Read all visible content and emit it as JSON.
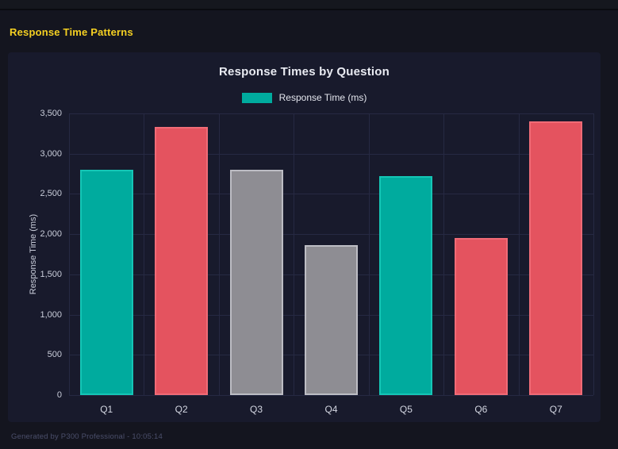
{
  "page": {
    "header_title": "Response Time Patterns",
    "footer_text": "Generated by P300 Professional - 10:05:14"
  },
  "colors": {
    "heading_accent": "#f5d022",
    "page_background": "#14151f",
    "panel_background": "#181a2c",
    "gridline": "#262943",
    "chart_title_text": "#e9ebf2",
    "axis_text": "#c9cdda"
  },
  "chart_data": {
    "type": "bar",
    "title": "Response Times by Question",
    "legend": [
      {
        "label": "Response Time (ms)",
        "color": "#00ab9e"
      }
    ],
    "legend_position": "top",
    "grid": true,
    "xlabel": "",
    "ylabel": "Response Time (ms)",
    "ylim": [
      0,
      3500
    ],
    "yticks": [
      0,
      500,
      1000,
      1500,
      2000,
      2500,
      3000,
      3500
    ],
    "ytick_labels": [
      "0",
      "500",
      "1,000",
      "1,500",
      "2,000",
      "2,500",
      "3,000",
      "3,500"
    ],
    "categories": [
      "Q1",
      "Q2",
      "Q3",
      "Q4",
      "Q5",
      "Q6",
      "Q7"
    ],
    "series": [
      {
        "name": "Response Time (ms)",
        "values": [
          2800,
          3330,
          2800,
          1860,
          2720,
          1950,
          3400
        ]
      }
    ],
    "bar_styles": [
      "teal",
      "red",
      "gray",
      "gray",
      "teal",
      "red",
      "red"
    ],
    "palette": {
      "teal": {
        "fill": "#00ab9e",
        "border": "#15c6b6"
      },
      "red": {
        "fill": "#e4535f",
        "border": "#f06b76"
      },
      "gray": {
        "fill": "#8e8d93",
        "border": "#bdbdc4"
      }
    }
  }
}
